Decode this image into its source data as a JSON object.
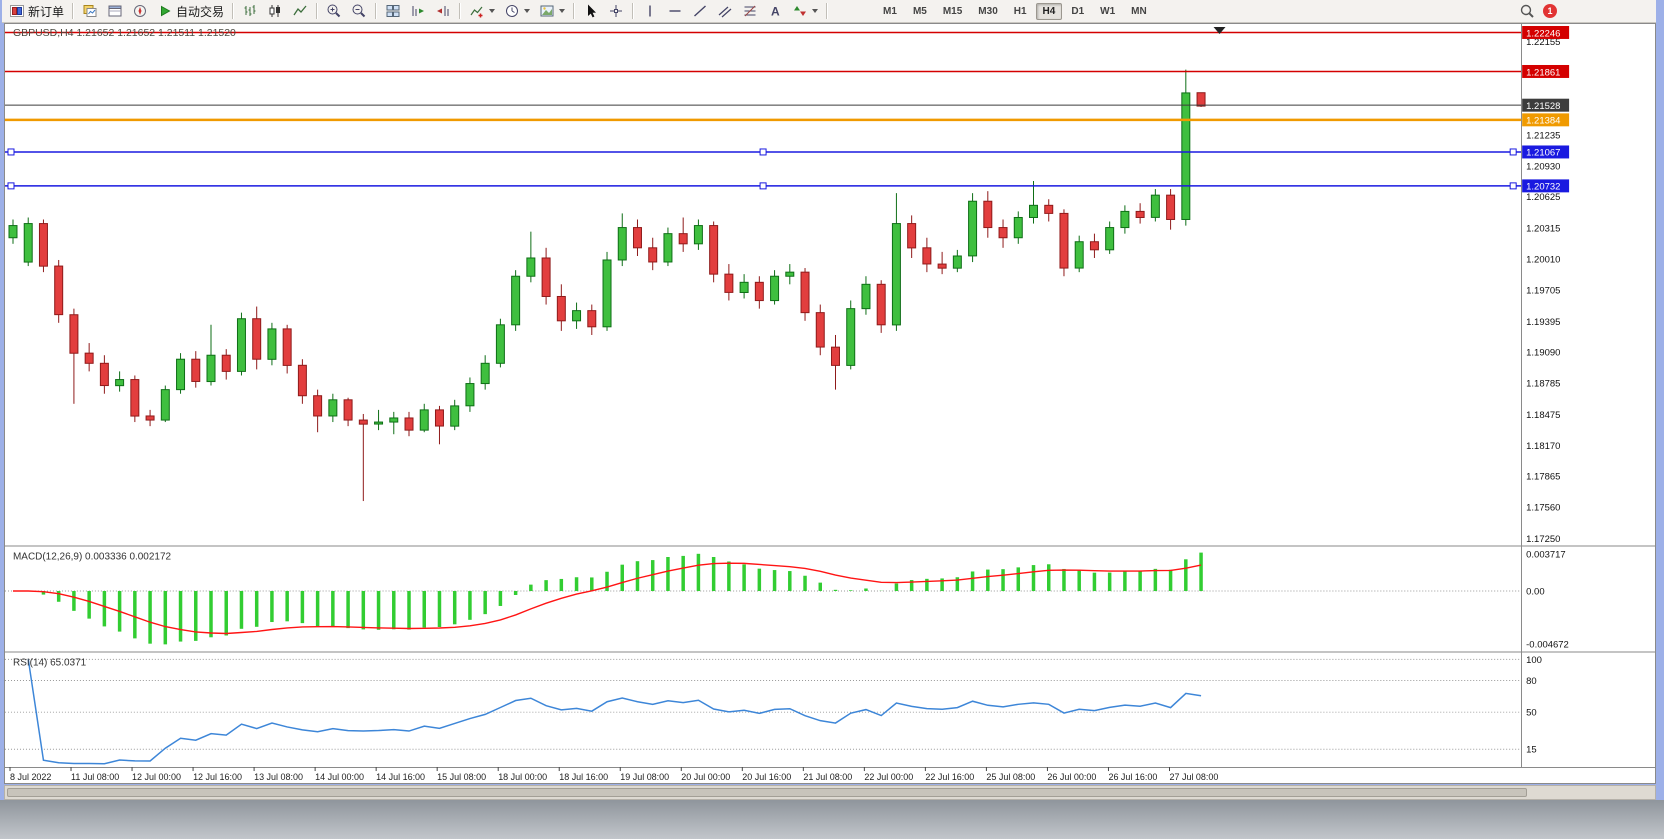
{
  "toolbar": {
    "new_order_label": "新订单",
    "auto_trading_label": "自动交易",
    "timeframes": [
      "M1",
      "M5",
      "M15",
      "M30",
      "H1",
      "H4",
      "D1",
      "W1",
      "MN"
    ],
    "active_timeframe": "H4",
    "notification_count": "1"
  },
  "chart_info": {
    "symbol_period": "GBPUSD,H4",
    "ohlc_text": "1.21652 1.21652 1.21511 1.21520"
  },
  "indicators": {
    "macd_label": "MACD(12,26,9) 0.003336 0.002172",
    "rsi_label": "RSI(14) 65.0371"
  },
  "chart_data": {
    "type": "candlestick",
    "symbol": "GBPUSD",
    "period": "H4",
    "price_range": {
      "max": 1.2233,
      "min": 1.1718
    },
    "ohlc": [
      [
        1.2022,
        1.204,
        1.2016,
        1.2034
      ],
      [
        1.1998,
        1.2042,
        1.1994,
        1.2036
      ],
      [
        1.2036,
        1.204,
        1.1988,
        1.1994
      ],
      [
        1.1994,
        1.2,
        1.1938,
        1.1946
      ],
      [
        1.1946,
        1.1952,
        1.1858,
        1.1908
      ],
      [
        1.1908,
        1.1918,
        1.189,
        1.1898
      ],
      [
        1.1898,
        1.1906,
        1.1868,
        1.1876
      ],
      [
        1.1876,
        1.189,
        1.187,
        1.1882
      ],
      [
        1.1882,
        1.1886,
        1.184,
        1.1846
      ],
      [
        1.1846,
        1.1852,
        1.1836,
        1.1842
      ],
      [
        1.1842,
        1.1876,
        1.184,
        1.1872
      ],
      [
        1.1872,
        1.1908,
        1.1868,
        1.1902
      ],
      [
        1.1902,
        1.191,
        1.1874,
        1.188
      ],
      [
        1.188,
        1.1936,
        1.1876,
        1.1906
      ],
      [
        1.1906,
        1.1912,
        1.1882,
        1.189
      ],
      [
        1.189,
        1.1948,
        1.1886,
        1.1942
      ],
      [
        1.1942,
        1.1954,
        1.1892,
        1.1902
      ],
      [
        1.1902,
        1.1938,
        1.1896,
        1.1932
      ],
      [
        1.1932,
        1.1936,
        1.1888,
        1.1896
      ],
      [
        1.1896,
        1.1902,
        1.1858,
        1.1866
      ],
      [
        1.1866,
        1.1872,
        1.183,
        1.1846
      ],
      [
        1.1846,
        1.1868,
        1.184,
        1.1862
      ],
      [
        1.1862,
        1.1864,
        1.1836,
        1.1842
      ],
      [
        1.1842,
        1.1848,
        1.1762,
        1.1838
      ],
      [
        1.1838,
        1.1852,
        1.1832,
        1.184
      ],
      [
        1.184,
        1.185,
        1.1828,
        1.1844
      ],
      [
        1.1844,
        1.185,
        1.1826,
        1.1832
      ],
      [
        1.1832,
        1.1858,
        1.183,
        1.1852
      ],
      [
        1.1852,
        1.1856,
        1.1818,
        1.1836
      ],
      [
        1.1836,
        1.1862,
        1.1832,
        1.1856
      ],
      [
        1.1856,
        1.1884,
        1.185,
        1.1878
      ],
      [
        1.1878,
        1.1906,
        1.1872,
        1.1898
      ],
      [
        1.1898,
        1.1942,
        1.1894,
        1.1936
      ],
      [
        1.1936,
        1.199,
        1.193,
        1.1984
      ],
      [
        1.1984,
        1.2028,
        1.1978,
        1.2002
      ],
      [
        1.2002,
        1.2012,
        1.1956,
        1.1964
      ],
      [
        1.1964,
        1.1976,
        1.193,
        1.194
      ],
      [
        1.194,
        1.1958,
        1.1932,
        1.195
      ],
      [
        1.195,
        1.1956,
        1.1926,
        1.1934
      ],
      [
        1.1934,
        1.2008,
        1.193,
        1.2
      ],
      [
        1.2,
        1.2046,
        1.1994,
        1.2032
      ],
      [
        1.2032,
        1.204,
        1.2004,
        1.2012
      ],
      [
        1.2012,
        1.2022,
        1.199,
        1.1998
      ],
      [
        1.1998,
        1.2032,
        1.1994,
        1.2026
      ],
      [
        1.2026,
        1.2042,
        1.2008,
        1.2016
      ],
      [
        1.2016,
        1.204,
        1.201,
        1.2034
      ],
      [
        1.2034,
        1.2038,
        1.1978,
        1.1986
      ],
      [
        1.1986,
        1.1996,
        1.196,
        1.1968
      ],
      [
        1.1968,
        1.1986,
        1.1962,
        1.1978
      ],
      [
        1.1978,
        1.1984,
        1.1952,
        1.196
      ],
      [
        1.196,
        1.199,
        1.1956,
        1.1984
      ],
      [
        1.1984,
        1.1996,
        1.1976,
        1.1988
      ],
      [
        1.1988,
        1.1992,
        1.194,
        1.1948
      ],
      [
        1.1948,
        1.1956,
        1.1906,
        1.1914
      ],
      [
        1.1914,
        1.1926,
        1.1872,
        1.1896
      ],
      [
        1.1896,
        1.196,
        1.1892,
        1.1952
      ],
      [
        1.1952,
        1.1984,
        1.1946,
        1.1976
      ],
      [
        1.1976,
        1.198,
        1.1928,
        1.1936
      ],
      [
        1.1936,
        1.2066,
        1.193,
        1.2036
      ],
      [
        1.2036,
        1.2044,
        1.2002,
        1.2012
      ],
      [
        1.2012,
        1.2022,
        1.1988,
        1.1996
      ],
      [
        1.1996,
        1.2008,
        1.1986,
        1.1992
      ],
      [
        1.1992,
        1.201,
        1.1988,
        1.2004
      ],
      [
        1.2004,
        1.2066,
        1.1998,
        1.2058
      ],
      [
        1.2058,
        1.2068,
        1.2022,
        1.2032
      ],
      [
        1.2032,
        1.204,
        1.2012,
        1.2022
      ],
      [
        1.2022,
        1.2048,
        1.2016,
        1.2042
      ],
      [
        1.2042,
        1.2078,
        1.2036,
        1.2054
      ],
      [
        1.2054,
        1.206,
        1.2038,
        1.2046
      ],
      [
        1.2046,
        1.205,
        1.1984,
        1.1992
      ],
      [
        1.1992,
        1.2024,
        1.1988,
        1.2018
      ],
      [
        1.2018,
        1.2026,
        1.2002,
        1.201
      ],
      [
        1.201,
        1.2038,
        1.2006,
        1.2032
      ],
      [
        1.2032,
        1.2054,
        1.2026,
        1.2048
      ],
      [
        1.2048,
        1.2056,
        1.2036,
        1.2042
      ],
      [
        1.2042,
        1.207,
        1.2038,
        1.2064
      ],
      [
        1.2064,
        1.207,
        1.203,
        1.204
      ],
      [
        1.204,
        1.2188,
        1.2034,
        1.2165
      ],
      [
        1.21652,
        1.21652,
        1.21511,
        1.2152
      ]
    ],
    "time_labels": [
      "8 Jul 2022",
      "11 Jul 08:00",
      "12 Jul 00:00",
      "12 Jul 16:00",
      "13 Jul 08:00",
      "14 Jul 00:00",
      "14 Jul 16:00",
      "15 Jul 08:00",
      "18 Jul 00:00",
      "18 Jul 16:00",
      "19 Jul 08:00",
      "20 Jul 00:00",
      "20 Jul 16:00",
      "21 Jul 08:00",
      "22 Jul 00:00",
      "22 Jul 16:00",
      "25 Jul 08:00",
      "26 Jul 00:00",
      "26 Jul 16:00",
      "27 Jul 08:00"
    ],
    "price_ticks": [
      "1.22155",
      "1.21235",
      "1.20930",
      "1.20625",
      "1.20315",
      "1.20010",
      "1.19705",
      "1.19395",
      "1.19090",
      "1.18785",
      "1.18475",
      "1.18170",
      "1.17865",
      "1.17560",
      "1.17250"
    ],
    "hlines": [
      {
        "price": 1.22246,
        "label": "1.22246",
        "color": "#d40000",
        "width": 1.5,
        "handles": false
      },
      {
        "price": 1.21861,
        "label": "1.21861",
        "color": "#d40000",
        "width": 1.5,
        "handles": false
      },
      {
        "price": 1.21528,
        "label": "1.21528",
        "color": "#3c3c3c",
        "width": 1,
        "handles": false
      },
      {
        "price": 1.21384,
        "label": "1.21384",
        "color": "#f09a00",
        "width": 2.5,
        "handles": false
      },
      {
        "price": 1.21067,
        "label": "1.21067",
        "color": "#1a1ae0",
        "width": 1.5,
        "handles": true
      },
      {
        "price": 1.20732,
        "label": "1.20732",
        "color": "#1a1ae0",
        "width": 1.5,
        "handles": true
      }
    ],
    "macd": {
      "params": [
        12,
        26,
        9
      ],
      "value_main": "0.003336",
      "value_signal": "0.002172",
      "axis_labels": [
        "0.003717",
        "0.00",
        "-0.004672"
      ],
      "histogram_color": "#32cd32",
      "signal_color": "#ff1414"
    },
    "rsi": {
      "period": 14,
      "value": "65.0371",
      "levels": [
        100,
        80,
        50,
        15
      ],
      "axis_labels": [
        "100",
        "80",
        "50",
        "15"
      ],
      "line_color": "#3d86d8"
    },
    "colors": {
      "bull_fill": "#3fbf3f",
      "bull_stroke": "#0e6e16",
      "bear_fill": "#e23e3e",
      "bear_stroke": "#8f1a1a",
      "background": "#ffffff",
      "axis_text": "#111111",
      "grid": "#999999"
    }
  }
}
